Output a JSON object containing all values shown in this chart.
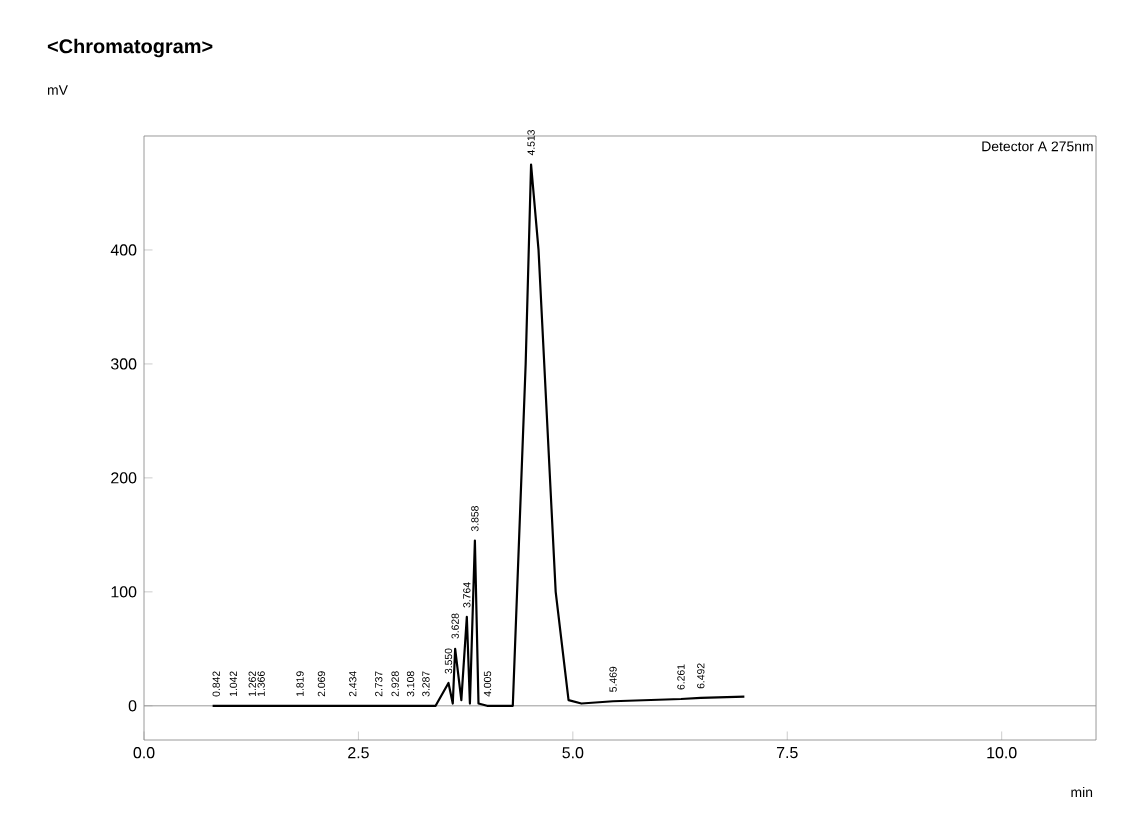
{
  "chart_data": {
    "type": "line",
    "title": "<Chromatogram>",
    "ylabel": "mV",
    "xlabel": "min",
    "annotations": [
      "Detector A 275nm",
      {
        "text": "0.842",
        "x": 0.842,
        "y": 0
      },
      {
        "text": "1.042",
        "x": 1.042,
        "y": 0
      },
      {
        "text": "1.262",
        "x": 1.262,
        "y": 0
      },
      {
        "text": "1.366",
        "x": 1.366,
        "y": 0
      },
      {
        "text": "1.819",
        "x": 1.819,
        "y": 0
      },
      {
        "text": "2.069",
        "x": 2.069,
        "y": 0
      },
      {
        "text": "2.434",
        "x": 2.434,
        "y": 0
      },
      {
        "text": "2.737",
        "x": 2.737,
        "y": 0
      },
      {
        "text": "2.928",
        "x": 2.928,
        "y": 0
      },
      {
        "text": "3.108",
        "x": 3.108,
        "y": 0
      },
      {
        "text": "3.287",
        "x": 3.287,
        "y": 0
      },
      {
        "text": "3.550",
        "x": 3.55,
        "y": 20
      },
      {
        "text": "3.628",
        "x": 3.628,
        "y": 50
      },
      {
        "text": "3.764",
        "x": 3.764,
        "y": 78
      },
      {
        "text": "3.858",
        "x": 3.858,
        "y": 145
      },
      {
        "text": "4.005",
        "x": 4.005,
        "y": 0
      },
      {
        "text": "4.513",
        "x": 4.513,
        "y": 475
      },
      {
        "text": "5.469",
        "x": 5.469,
        "y": 4
      },
      {
        "text": "6.261",
        "x": 6.261,
        "y": 6
      },
      {
        "text": "6.492",
        "x": 6.492,
        "y": 7
      }
    ],
    "series": [
      {
        "color": "#000000",
        "x": [
          0.8,
          3.4,
          3.55,
          3.6,
          3.628,
          3.7,
          3.764,
          3.8,
          3.858,
          3.9,
          4.0,
          4.3,
          4.45,
          4.513,
          4.6,
          4.8,
          4.95,
          5.1,
          5.469,
          6.261,
          6.492,
          7.0
        ],
        "values": [
          0,
          0,
          20,
          2,
          50,
          5,
          78,
          2,
          145,
          2,
          0,
          0,
          300,
          475,
          400,
          100,
          5,
          2,
          4,
          6,
          7,
          8
        ]
      }
    ],
    "xlim": [
      0,
      11.1
    ],
    "ylim": [
      -30,
      500
    ],
    "xticks": [
      {
        "value": 0,
        "label": "0.0"
      },
      {
        "value": 2.5,
        "label": "2.5"
      },
      {
        "value": 5,
        "label": "5.0"
      },
      {
        "value": 7.5,
        "label": "7.5"
      },
      {
        "value": 10,
        "label": "10.0"
      }
    ],
    "yticks": [
      0,
      100,
      200,
      300,
      400
    ],
    "ref_lines": [
      {
        "axis": "y",
        "value": 0,
        "color": "#999999"
      }
    ],
    "grid": false,
    "marker": "none",
    "line_style": "solid"
  }
}
